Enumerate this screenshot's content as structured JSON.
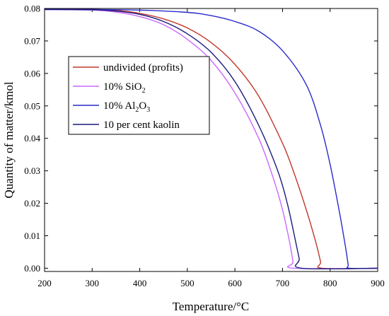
{
  "chart_data": {
    "type": "line",
    "xlabel": "Temperature/°C",
    "ylabel": "Quantity of matter/kmol",
    "xlim": [
      200,
      900
    ],
    "ylim": [
      -0.001,
      0.08
    ],
    "x_ticks": [
      "200",
      "300",
      "400",
      "500",
      "600",
      "700",
      "800",
      "900"
    ],
    "y_ticks": [
      "0.00",
      "0.01",
      "0.02",
      "0.03",
      "0.04",
      "0.05",
      "0.06",
      "0.07",
      "0.08"
    ],
    "grid": false,
    "legend_position": "upper-left",
    "series": [
      {
        "name": "undivided (profits)",
        "color": "#c0392b",
        "points": [
          [
            200,
            0.0797
          ],
          [
            300,
            0.0797
          ],
          [
            350,
            0.0794
          ],
          [
            400,
            0.0785
          ],
          [
            450,
            0.0768
          ],
          [
            500,
            0.074
          ],
          [
            550,
            0.0695
          ],
          [
            600,
            0.0628
          ],
          [
            650,
            0.053
          ],
          [
            700,
            0.0385
          ],
          [
            725,
            0.029
          ],
          [
            750,
            0.018
          ],
          [
            770,
            0.008
          ],
          [
            780,
            0.002
          ],
          [
            783,
            0.0
          ],
          [
            900,
            0.0
          ]
        ]
      },
      {
        "name": "10% SiO2",
        "color": "#cc66ff",
        "points": [
          [
            200,
            0.0797
          ],
          [
            300,
            0.0795
          ],
          [
            350,
            0.0789
          ],
          [
            400,
            0.0775
          ],
          [
            450,
            0.075
          ],
          [
            500,
            0.0705
          ],
          [
            550,
            0.064
          ],
          [
            600,
            0.054
          ],
          [
            650,
            0.04
          ],
          [
            680,
            0.028
          ],
          [
            700,
            0.018
          ],
          [
            715,
            0.008
          ],
          [
            722,
            0.002
          ],
          [
            724,
            0.0
          ],
          [
            900,
            0.0
          ]
        ]
      },
      {
        "name": "10% Al2O3",
        "color": "#2a2acc",
        "points": [
          [
            200,
            0.0797
          ],
          [
            300,
            0.0797
          ],
          [
            400,
            0.0795
          ],
          [
            500,
            0.0788
          ],
          [
            550,
            0.0778
          ],
          [
            600,
            0.076
          ],
          [
            650,
            0.073
          ],
          [
            700,
            0.067
          ],
          [
            750,
            0.0565
          ],
          [
            780,
            0.044
          ],
          [
            800,
            0.032
          ],
          [
            820,
            0.017
          ],
          [
            833,
            0.006
          ],
          [
            838,
            0.001
          ],
          [
            840,
            0.0
          ],
          [
            900,
            0.0
          ]
        ]
      },
      {
        "name": "10 per cent kaolin",
        "color": "#1a1a80",
        "points": [
          [
            200,
            0.0797
          ],
          [
            300,
            0.0796
          ],
          [
            350,
            0.0792
          ],
          [
            400,
            0.0782
          ],
          [
            450,
            0.076
          ],
          [
            500,
            0.0722
          ],
          [
            550,
            0.0665
          ],
          [
            600,
            0.0575
          ],
          [
            650,
            0.044
          ],
          [
            690,
            0.03
          ],
          [
            710,
            0.02
          ],
          [
            725,
            0.01
          ],
          [
            735,
            0.003
          ],
          [
            740,
            0.0
          ],
          [
            900,
            0.0
          ]
        ]
      }
    ],
    "legend": {
      "entries": [
        {
          "text": "undivided (profits)"
        },
        {
          "text": "10% SiO",
          "sub": "2"
        },
        {
          "text": "10% Al",
          "sub": "2",
          "text2": "O",
          "sub2": "3"
        },
        {
          "text": "10 per cent kaolin"
        }
      ]
    }
  }
}
